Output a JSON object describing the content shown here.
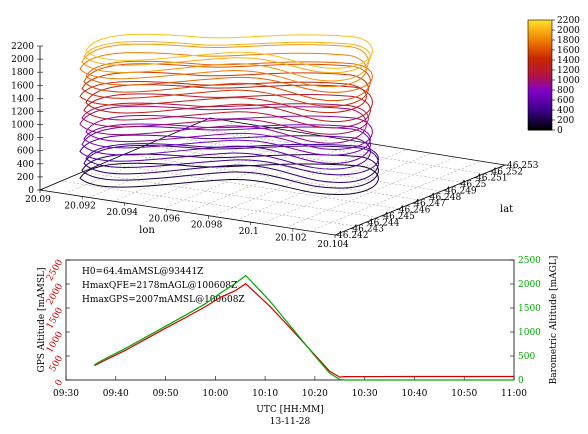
{
  "chart_data": [
    {
      "type": "line3d",
      "xlabel": "lon",
      "ylabel": "lat",
      "zlabel": "",
      "z_ticks": [
        "0",
        "200",
        "400",
        "600",
        "800",
        "1000",
        "1200",
        "1400",
        "1600",
        "1800",
        "2000",
        "2200"
      ],
      "lon_ticks": [
        "20.09",
        "20.092",
        "20.094",
        "20.096",
        "20.098",
        "20.1",
        "20.102",
        "20.104"
      ],
      "lat_ticks": [
        "46.242",
        "46.243",
        "46.244",
        "46.245",
        "46.246",
        "46.247",
        "46.248",
        "46.249",
        "46.25",
        "46.251",
        "46.252",
        "46.253"
      ],
      "colorbar": {
        "ticks": [
          "0",
          "200",
          "400",
          "600",
          "800",
          "1000",
          "1200",
          "1400",
          "1600",
          "1800",
          "2000",
          "2200"
        ],
        "range": [
          0,
          2200
        ]
      },
      "series": [
        {
          "values": [
            {
              "z": 120
            },
            {
              "z": 230
            },
            {
              "z": 330
            },
            {
              "z": 420
            },
            {
              "z": 520
            },
            {
              "z": 620
            },
            {
              "z": 720
            },
            {
              "z": 820
            },
            {
              "z": 930
            },
            {
              "z": 1040
            },
            {
              "z": 1150
            },
            {
              "z": 1260
            },
            {
              "z": 1370
            },
            {
              "z": 1480
            },
            {
              "z": 1580
            },
            {
              "z": 1680
            },
            {
              "z": 1780
            },
            {
              "z": 1880
            },
            {
              "z": 1980
            },
            {
              "z": 2060
            }
          ]
        }
      ]
    },
    {
      "type": "line",
      "x_ticks": [
        "09:30",
        "09:40",
        "09:50",
        "10:00",
        "10:10",
        "10:20",
        "10:30",
        "10:40",
        "10:50",
        "11:00"
      ],
      "xlabel": "UTC [HH:MM]",
      "xlabel2": "13-11-28",
      "ylabel_left": "GPS Altitude [mAMSL]",
      "ylabel_right": "Barometric Altitude [mAGL]",
      "y_left_ticks": [
        "0",
        "500",
        "1000",
        "1500",
        "2000",
        "2500"
      ],
      "y_right_ticks": [
        "0",
        "500",
        "1000",
        "1500",
        "2000",
        "2500"
      ],
      "ylim": [
        0,
        2500
      ],
      "xlim_minutes": [
        0,
        90
      ],
      "annotations": [
        "H0=64.4mAMSL@93441Z",
        "HmaxQFE=2178mAGL@100608Z",
        "HmaxGPS=2007mAMSL@100608Z"
      ],
      "series": [
        {
          "color": "#d40000",
          "points": [
            [
              5.7,
              300
            ],
            [
              8,
              420
            ],
            [
              12,
              620
            ],
            [
              16,
              850
            ],
            [
              20,
              1080
            ],
            [
              24,
              1300
            ],
            [
              28,
              1530
            ],
            [
              31,
              1720
            ],
            [
              34,
              1860
            ],
            [
              36.1,
              2007
            ],
            [
              38,
              1820
            ],
            [
              41,
              1530
            ],
            [
              44,
              1200
            ],
            [
              47,
              860
            ],
            [
              50,
              520
            ],
            [
              53,
              180
            ],
            [
              55,
              60
            ],
            [
              56,
              70
            ],
            [
              70,
              72
            ],
            [
              90,
              72
            ]
          ]
        },
        {
          "color": "#00aa00",
          "points": [
            [
              5.7,
              320
            ],
            [
              8,
              450
            ],
            [
              12,
              660
            ],
            [
              16,
              890
            ],
            [
              20,
              1120
            ],
            [
              24,
              1350
            ],
            [
              28,
              1590
            ],
            [
              31,
              1810
            ],
            [
              34,
              2010
            ],
            [
              36.1,
              2178
            ],
            [
              38,
              1970
            ],
            [
              41,
              1640
            ],
            [
              44,
              1260
            ],
            [
              47,
              880
            ],
            [
              50,
              500
            ],
            [
              53,
              140
            ],
            [
              55,
              10
            ],
            [
              56,
              0
            ],
            [
              70,
              0
            ],
            [
              90,
              0
            ]
          ]
        }
      ]
    }
  ]
}
